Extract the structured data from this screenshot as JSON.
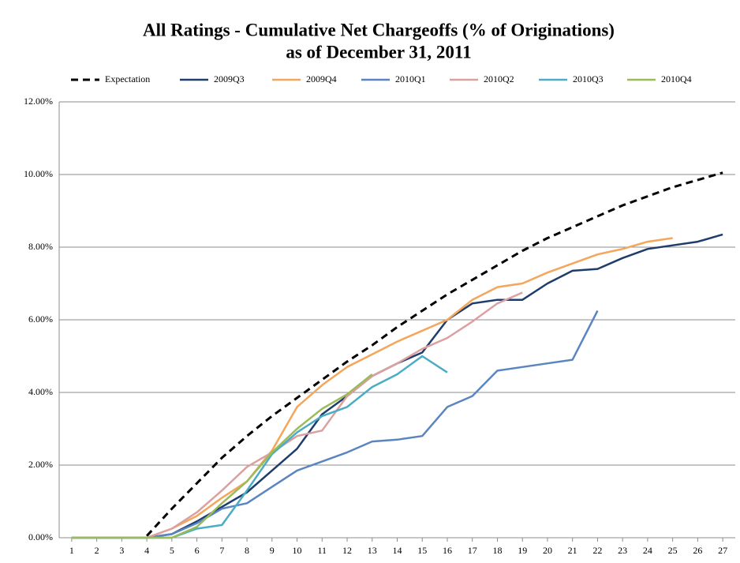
{
  "chart_data": {
    "type": "line",
    "title": "All Ratings - Cumulative Net Chargeoffs (% of Originations)",
    "subtitle": "as of December 31, 2011",
    "x": [
      1,
      2,
      3,
      4,
      5,
      6,
      7,
      8,
      9,
      10,
      11,
      12,
      13,
      14,
      15,
      16,
      17,
      18,
      19,
      20,
      21,
      22,
      23,
      24,
      25,
      26,
      27
    ],
    "xlim": [
      0.5,
      27.5
    ],
    "xticks": [
      1,
      2,
      3,
      4,
      5,
      6,
      7,
      8,
      9,
      10,
      11,
      12,
      13,
      14,
      15,
      16,
      17,
      18,
      19,
      20,
      21,
      22,
      23,
      24,
      25,
      26,
      27
    ],
    "ylim": [
      0,
      12
    ],
    "yticks": [
      {
        "value": 0,
        "label": "0.00%"
      },
      {
        "value": 2,
        "label": "2.00%"
      },
      {
        "value": 4,
        "label": "4.00%"
      },
      {
        "value": 6,
        "label": "6.00%"
      },
      {
        "value": 8,
        "label": "8.00%"
      },
      {
        "value": 10,
        "label": "10.00%"
      },
      {
        "value": 12,
        "label": "12.00%"
      }
    ],
    "grid": true,
    "legend": "top",
    "series": [
      {
        "name": "Expectation",
        "color": "#000000",
        "dashed": true,
        "values": [
          null,
          null,
          null,
          0.05,
          0.8,
          1.5,
          2.2,
          2.8,
          3.35,
          3.85,
          4.35,
          4.85,
          5.3,
          5.8,
          6.25,
          6.7,
          7.1,
          7.5,
          7.9,
          8.25,
          8.55,
          8.85,
          9.15,
          9.4,
          9.65,
          9.85,
          10.05
        ]
      },
      {
        "name": "2009Q3",
        "color": "#1f3d6b",
        "values": [
          0,
          0,
          0,
          0,
          0.1,
          0.45,
          0.85,
          1.25,
          1.85,
          2.45,
          3.4,
          3.9,
          4.45,
          4.8,
          5.1,
          6.0,
          6.45,
          6.55,
          6.55,
          7.0,
          7.35,
          7.4,
          7.7,
          7.95,
          8.05,
          8.15,
          8.35
        ]
      },
      {
        "name": "2009Q4",
        "color": "#f4a65a",
        "values": [
          0,
          0,
          0,
          0,
          0.25,
          0.6,
          1.1,
          1.55,
          2.4,
          3.6,
          4.2,
          4.7,
          5.05,
          5.4,
          5.7,
          6.0,
          6.55,
          6.9,
          7.0,
          7.3,
          7.55,
          7.8,
          7.95,
          8.15,
          8.25,
          null,
          null
        ]
      },
      {
        "name": "2010Q1",
        "color": "#5b85c0",
        "values": [
          0,
          0,
          0,
          0,
          0.1,
          0.4,
          0.8,
          0.95,
          1.4,
          1.85,
          2.1,
          2.35,
          2.65,
          2.7,
          2.8,
          3.6,
          3.9,
          4.6,
          4.7,
          4.8,
          4.9,
          6.25,
          null,
          null,
          null,
          null,
          null
        ]
      },
      {
        "name": "2010Q2",
        "color": "#dba0a0",
        "values": [
          0,
          0,
          0,
          0,
          0.25,
          0.7,
          1.3,
          1.95,
          2.35,
          2.8,
          2.95,
          3.9,
          4.45,
          4.8,
          5.2,
          5.5,
          5.95,
          6.45,
          6.75,
          null,
          null,
          null,
          null,
          null,
          null,
          null,
          null
        ]
      },
      {
        "name": "2010Q3",
        "color": "#4bacc6",
        "values": [
          0,
          0,
          0,
          0,
          0,
          0.25,
          0.35,
          1.3,
          2.3,
          2.9,
          3.35,
          3.6,
          4.15,
          4.5,
          5.0,
          4.55,
          null,
          null,
          null,
          null,
          null,
          null,
          null,
          null,
          null,
          null,
          null
        ]
      },
      {
        "name": "2010Q4",
        "color": "#9bbb59",
        "values": [
          0,
          0,
          0,
          0,
          0,
          0.3,
          0.95,
          1.55,
          2.35,
          3.0,
          3.55,
          3.95,
          4.5,
          null,
          null,
          null,
          null,
          null,
          null,
          null,
          null,
          null,
          null,
          null,
          null,
          null,
          null
        ]
      }
    ]
  }
}
